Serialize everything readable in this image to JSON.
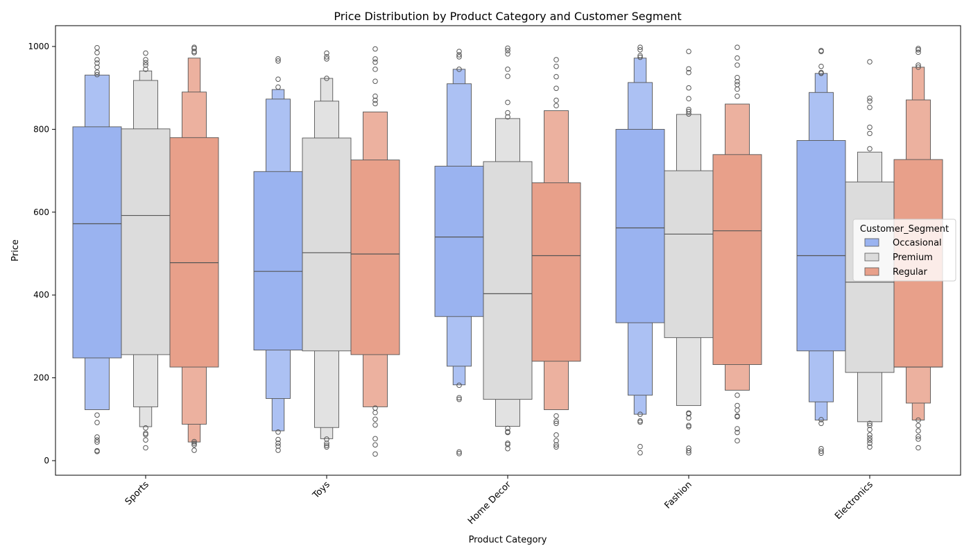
{
  "chart_data": {
    "type": "boxen",
    "title": "Price Distribution by Product Category and Customer Segment",
    "xlabel": "Product Category",
    "ylabel": "Price",
    "ylim": [
      -35,
      1048
    ],
    "yticks": [
      0,
      200,
      400,
      600,
      800,
      1000
    ],
    "categories": [
      "Sports",
      "Toys",
      "Home Decor",
      "Fashion",
      "Electronics"
    ],
    "legend": {
      "title": "Customer_Segment",
      "placement": "center-right"
    },
    "series": [
      {
        "name": "Occasional",
        "color": "#9ab3f0",
        "groups": [
          {
            "median": 572,
            "levels": [
              [
                248,
                806
              ],
              [
                123,
                931
              ]
            ],
            "outliers": [
              997,
              985,
              968,
              960,
              950,
              938,
              932,
              110,
              92,
              57,
              50,
              45,
              24,
              22
            ]
          },
          {
            "median": 457,
            "levels": [
              [
                267,
                698
              ],
              [
                150,
                873
              ],
              [
                72,
                896
              ]
            ],
            "outliers": [
              970,
              965,
              921,
              902,
              69,
              51,
              42,
              35,
              25
            ]
          },
          {
            "median": 540,
            "levels": [
              [
                348,
                711
              ],
              [
                228,
                910
              ],
              [
                183,
                945
              ]
            ],
            "outliers": [
              988,
              980,
              975,
              945,
              182,
              152,
              148,
              21,
              17
            ]
          },
          {
            "median": 562,
            "levels": [
              [
                333,
                800
              ],
              [
                158,
                913
              ],
              [
                112,
                972
              ]
            ],
            "outliers": [
              998,
              992,
              978,
              974,
              112,
              96,
              93,
              34,
              19
            ]
          },
          {
            "median": 495,
            "levels": [
              [
                265,
                773
              ],
              [
                142,
                889
              ],
              [
                98,
                935
              ]
            ],
            "outliers": [
              990,
              988,
              952,
              937,
              935,
              99,
              90,
              29,
              23,
              18
            ]
          }
        ]
      },
      {
        "name": "Premium",
        "color": "#dcdcdc",
        "groups": [
          {
            "median": 592,
            "levels": [
              [
                256,
                801
              ],
              [
                130,
                918
              ],
              [
                82,
                941
              ]
            ],
            "outliers": [
              984,
              968,
              961,
              955,
              945,
              79,
              66,
              63,
              50,
              31
            ]
          },
          {
            "median": 502,
            "levels": [
              [
                265,
                779
              ],
              [
                80,
                868
              ],
              [
                53,
                923
              ]
            ],
            "outliers": [
              984,
              975,
              970,
              923,
              52,
              42,
              37,
              33
            ]
          },
          {
            "median": 403,
            "levels": [
              [
                148,
                722
              ],
              [
                83,
                826
              ]
            ],
            "outliers": [
              996,
              990,
              982,
              945,
              928,
              865,
              840,
              830,
              78,
              70,
              68,
              42,
              39,
              29
            ]
          },
          {
            "median": 547,
            "levels": [
              [
                297,
                700
              ],
              [
                133,
                836
              ]
            ],
            "outliers": [
              988,
              946,
              937,
              900,
              874,
              848,
              843,
              837,
              115,
              113,
              103,
              85,
              82,
              30,
              24,
              19
            ]
          },
          {
            "median": 431,
            "levels": [
              [
                213,
                673
              ],
              [
                94,
                745
              ]
            ],
            "outliers": [
              963,
              875,
              868,
              853,
              805,
              790,
              753,
              90,
              85,
              75,
              62,
              55,
              49,
              42,
              33
            ]
          }
        ]
      },
      {
        "name": "Regular",
        "color": "#e8a08a",
        "groups": [
          {
            "median": 478,
            "levels": [
              [
                226,
                780
              ],
              [
                88,
                890
              ],
              [
                45,
                972
              ]
            ],
            "outliers": [
              998,
              995,
              988,
              985,
              46,
              42,
              38,
              25
            ]
          },
          {
            "median": 499,
            "levels": [
              [
                256,
                726
              ],
              [
                130,
                842
              ]
            ],
            "outliers": [
              994,
              970,
              962,
              945,
              916,
              880,
              870,
              862,
              127,
              116,
              100,
              86,
              53,
              38,
              16
            ]
          },
          {
            "median": 495,
            "levels": [
              [
                240,
                671
              ],
              [
                123,
                845
              ]
            ],
            "outliers": [
              968,
              952,
              927,
              899,
              870,
              857,
              108,
              95,
              90,
              62,
              48,
              38,
              33
            ]
          },
          {
            "median": 555,
            "levels": [
              [
                232,
                739
              ],
              [
                170,
                861
              ]
            ],
            "outliers": [
              998,
              972,
              955,
              925,
              915,
              908,
              897,
              880,
              158,
              133,
              122,
              108,
              106,
              77,
              68,
              48
            ]
          },
          {
            "median": 226,
            "levels": [
              [
                226,
                727
              ],
              [
                139,
                871
              ],
              [
                98,
                950
              ]
            ],
            "outliers": [
              995,
              992,
              986,
              955,
              950,
              98,
              85,
              72,
              58,
              52,
              31
            ]
          }
        ]
      }
    ]
  }
}
